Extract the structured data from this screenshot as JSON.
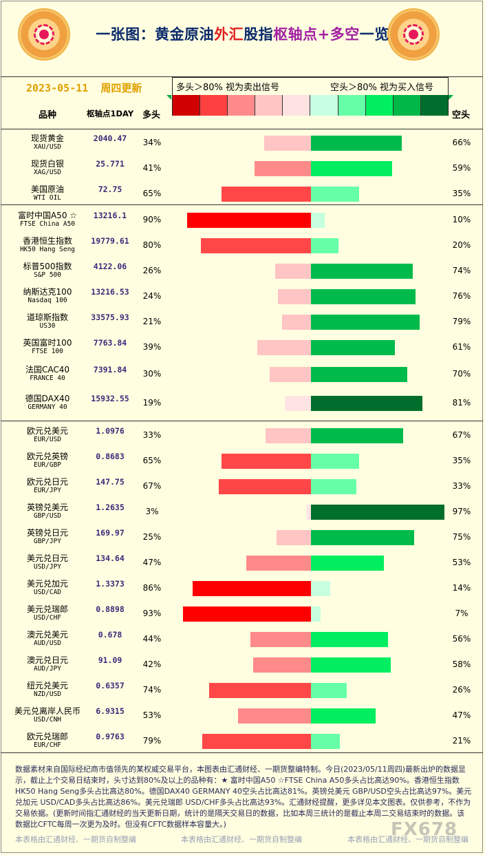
{
  "header": {
    "title_parts": [
      "一张图：黄金原油",
      "外汇",
      "股指",
      "枢轴点+多空",
      "一览"
    ],
    "date": "2023-05-11",
    "weekday": "周四更新",
    "legend_long": "多头＞80% 视为卖出信号",
    "legend_short": "空头＞80% 视为买入信号",
    "col_name": "品种",
    "col_pivot": "枢轴点1DAY",
    "col_long": "多头",
    "col_short": "空头",
    "swatch_colors": [
      "#d00000",
      "#ff4040",
      "#ff8a8a",
      "#ffc4c4",
      "#ffe2e2",
      "#c8ffe2",
      "#66ffa8",
      "#00ee60",
      "#00b848",
      "#006e2c"
    ]
  },
  "colors": {
    "long_scale": [
      "#ff0000",
      "#ff4747",
      "#ff8a8a",
      "#ffc4c4",
      "#ffe4e4"
    ],
    "short_scale": [
      "#c6ffe0",
      "#66ffa8",
      "#00ee60",
      "#00bb4c",
      "#006e2c"
    ]
  },
  "chart_data": {
    "type": "bar",
    "groups": [
      {
        "rows": [
          {
            "name": "现货黄金",
            "code": "XAU/USD",
            "pivot": "2040.47",
            "long": 34,
            "short": 66
          },
          {
            "name": "现货白银",
            "code": "XAG/USD",
            "pivot": "25.771",
            "long": 41,
            "short": 59
          },
          {
            "name": "美国原油",
            "code": "WTI OIL",
            "pivot": "72.75",
            "long": 65,
            "short": 35
          }
        ]
      },
      {
        "rows": [
          {
            "name": "富时中国A50 ☆",
            "code": "FTSE China A50",
            "pivot": "13216.1",
            "long": 90,
            "short": 10
          },
          {
            "name": "香港恒生指数",
            "code": "HK50 Hang Seng",
            "pivot": "19779.61",
            "long": 80,
            "short": 20
          },
          {
            "name": "标普500指数",
            "code": "S&P 500",
            "pivot": "4122.06",
            "long": 26,
            "short": 74
          },
          {
            "name": "纳斯达克100",
            "code": "Nasdaq 100",
            "pivot": "13216.53",
            "long": 24,
            "short": 76
          },
          {
            "name": "道琼斯指数",
            "code": "US30",
            "pivot": "33575.93",
            "long": 21,
            "short": 79
          },
          {
            "name": "英国富时100",
            "code": "FTSE 100",
            "pivot": "7763.84",
            "long": 39,
            "short": 61
          },
          {
            "name": "法国CAC40",
            "code": "FRANCE 40",
            "pivot": "7391.84",
            "long": 30,
            "short": 70
          },
          {
            "name": "德国DAX40",
            "code": "GERMANY 40",
            "pivot": "15932.55",
            "long": 19,
            "short": 81
          }
        ]
      },
      {
        "rows": [
          {
            "name": "欧元兑美元",
            "code": "EUR/USD",
            "pivot": "1.0976",
            "long": 33,
            "short": 67
          },
          {
            "name": "欧元兑英镑",
            "code": "EUR/GBP",
            "pivot": "0.8683",
            "long": 65,
            "short": 35
          },
          {
            "name": "欧元兑日元",
            "code": "EUR/JPY",
            "pivot": "147.75",
            "long": 67,
            "short": 33
          },
          {
            "name": "英镑兑美元",
            "code": "GBP/USD",
            "pivot": "1.2635",
            "long": 3,
            "short": 97
          },
          {
            "name": "英镑兑日元",
            "code": "GBP/JPY",
            "pivot": "169.97",
            "long": 25,
            "short": 75
          },
          {
            "name": "美元兑日元",
            "code": "USD/JPY",
            "pivot": "134.64",
            "long": 47,
            "short": 53
          },
          {
            "name": "美元兑加元",
            "code": "USD/CAD",
            "pivot": "1.3373",
            "long": 86,
            "short": 14
          },
          {
            "name": "美元兑瑞郎",
            "code": "USD/CHF",
            "pivot": "0.8898",
            "long": 93,
            "short": 7
          },
          {
            "name": "澳元兑美元",
            "code": "AUD/USD",
            "pivot": "0.678",
            "long": 44,
            "short": 56
          },
          {
            "name": "澳元兑日元",
            "code": "AUD/JPY",
            "pivot": "91.09",
            "long": 42,
            "short": 58
          },
          {
            "name": "纽元兑美元",
            "code": "NZD/USD",
            "pivot": "0.6357",
            "long": 74,
            "short": 26
          },
          {
            "name": "美元兑离岸人民币",
            "code": "USD/CNH",
            "pivot": "6.9315",
            "long": 53,
            "short": 47
          },
          {
            "name": "欧元兑瑞郎",
            "code": "EUR/CHF",
            "pivot": "0.9763",
            "long": 79,
            "short": 21
          }
        ]
      }
    ]
  },
  "footer": {
    "note": "数据素材来自国际经纪商市值领先的某权威交易平台，本图表由汇通财经、一期货整编特制。今日(2023/05/11周四)最新出炉的数据显示，截止上个交易日结束时，头寸达到80%及以上的品种有：★ 富时中国A50 ☆FTSE China A50多头占比高达90%。香港恒生指数 HK50 Hang Seng多头占比高达80%。德国DAX40 GERMANY 40空头占比高达81%。英镑兑美元 GBP/USD空头占比高达97%。美元兑加元 USD/CAD多头占比高达86%。美元兑瑞郎 USD/CHF多头占比高达93%。汇通财经提醒，更多详见本文图表。仅供参考，不作为交易依据。(更新时间指汇通财经的当天更新日期，统计的是隔天交易日的数据，比如本周三统计的是截止本周二交易结束时的数据。该数据比CFTC每周一次更为及时。但没有CFTC数据样本容量大。)",
    "credit": "本表格由汇通财经、一期货自制整编",
    "watermark": "FX678"
  }
}
